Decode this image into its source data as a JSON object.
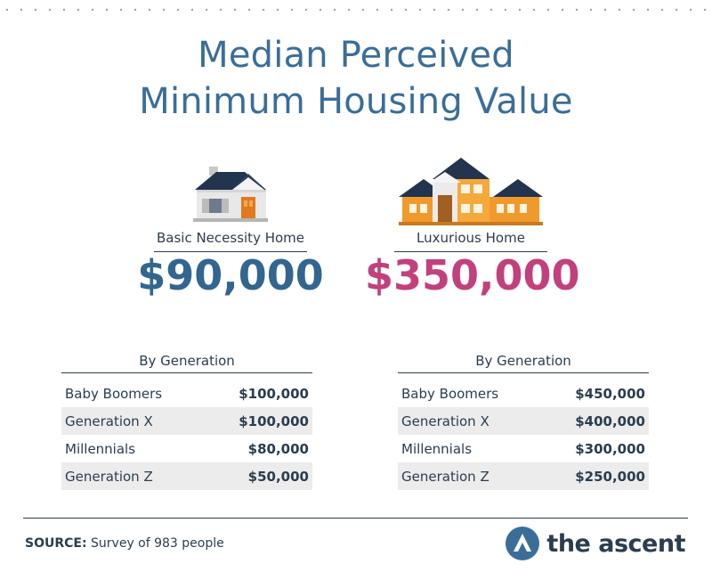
{
  "title": {
    "line1": "Median Perceived",
    "line2": "Minimum Housing Value"
  },
  "colors": {
    "title": "#3a6e99",
    "basic_value": "#33668f",
    "luxury_value": "#c2407c",
    "brand_icon": "#3a6e99"
  },
  "basic": {
    "label": "Basic Necessity Home",
    "value": "$90,000",
    "icon": "small-house-icon"
  },
  "luxury": {
    "label": "Luxurious Home",
    "value": "$350,000",
    "icon": "mansion-icon"
  },
  "basic_table": {
    "heading": "By Generation",
    "rows": [
      {
        "name": "Baby Boomers",
        "value": "$100,000"
      },
      {
        "name": "Generation X",
        "value": "$100,000"
      },
      {
        "name": "Millennials",
        "value": "$80,000"
      },
      {
        "name": "Generation Z",
        "value": "$50,000"
      }
    ]
  },
  "luxury_table": {
    "heading": "By Generation",
    "rows": [
      {
        "name": "Baby Boomers",
        "value": "$450,000"
      },
      {
        "name": "Generation X",
        "value": "$400,000"
      },
      {
        "name": "Millennials",
        "value": "$300,000"
      },
      {
        "name": "Generation Z",
        "value": "$250,000"
      }
    ]
  },
  "footer": {
    "source_label": "SOURCE:",
    "source_text": " Survey of 983 people",
    "brand": "the ascent",
    "brand_icon": "ascent-logo-icon"
  }
}
